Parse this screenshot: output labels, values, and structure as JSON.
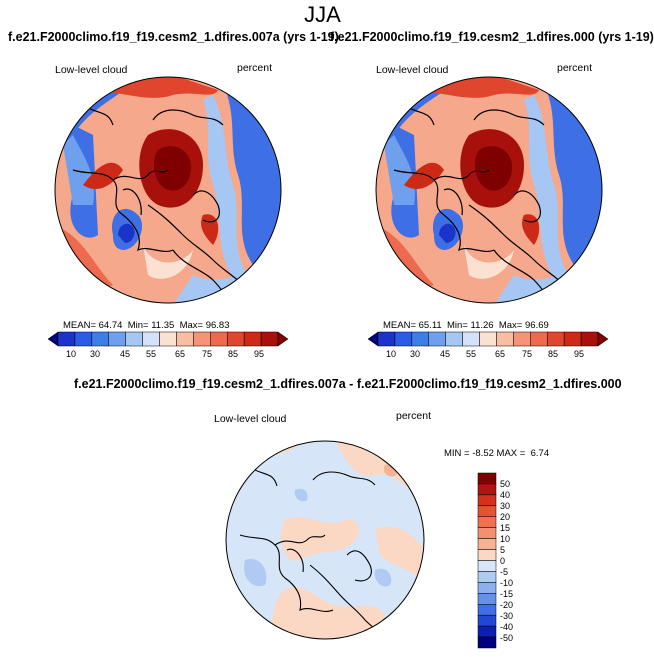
{
  "title": "JJA",
  "panels": [
    {
      "title": "f.e21.F2000climo.f19_f19.cesm2_1.dfires.007a (yrs 1-19)",
      "variable": "Low-level cloud",
      "units": "percent",
      "stats": {
        "mean_label": "MEAN=",
        "mean": "64.74",
        "min_label": "Min=",
        "min": "11.35",
        "max_label": "Max=",
        "max": "96.83"
      }
    },
    {
      "title": "f.e21.F2000climo.f19_f19.cesm2_1.dfires.000 (yrs 1-19)",
      "variable": "Low-level cloud",
      "units": "percent",
      "stats": {
        "mean_label": "MEAN=",
        "mean": "65.11",
        "min_label": "Min=",
        "min": "11.26",
        "max_label": "Max=",
        "max": "96.69"
      }
    }
  ],
  "diff_panel": {
    "title": "f.e21.F2000climo.f19_f19.cesm2_1.dfires.007a - f.e21.F2000climo.f19_f19.cesm2_1.dfires.000",
    "variable": "Low-level cloud",
    "units": "percent",
    "stats": {
      "min_label": "MIN =",
      "min": "-8.52",
      "max_label": "MAX =",
      "max": "6.74"
    }
  },
  "colorbar_main": {
    "labels": [
      "10",
      "30",
      "45",
      "55",
      "65",
      "75",
      "85",
      "95"
    ],
    "colors": [
      "#00007f",
      "#1a33c8",
      "#2a5ce6",
      "#3d7fe8",
      "#6fa0ee",
      "#a6c6f3",
      "#d3e2f8",
      "#fbe1d2",
      "#f8bea4",
      "#f59479",
      "#ee6a4e",
      "#e0452e",
      "#cc2a17",
      "#a8110b",
      "#7f0000"
    ]
  },
  "colorbar_diff": {
    "labels": [
      "50",
      "40",
      "30",
      "20",
      "15",
      "10",
      "5",
      "0",
      "-5",
      "-10",
      "-15",
      "-20",
      "-30",
      "-40",
      "-50"
    ],
    "colors": [
      "#7f0000",
      "#b01511",
      "#d3311e",
      "#e85132",
      "#f0704f",
      "#f4906f",
      "#f7b193",
      "#fad8c3",
      "#d6e6f8",
      "#b0cbf3",
      "#8cb0ee",
      "#6591ea",
      "#3f6fe4",
      "#2048d2",
      "#0b1fb0",
      "#00007f"
    ]
  }
}
